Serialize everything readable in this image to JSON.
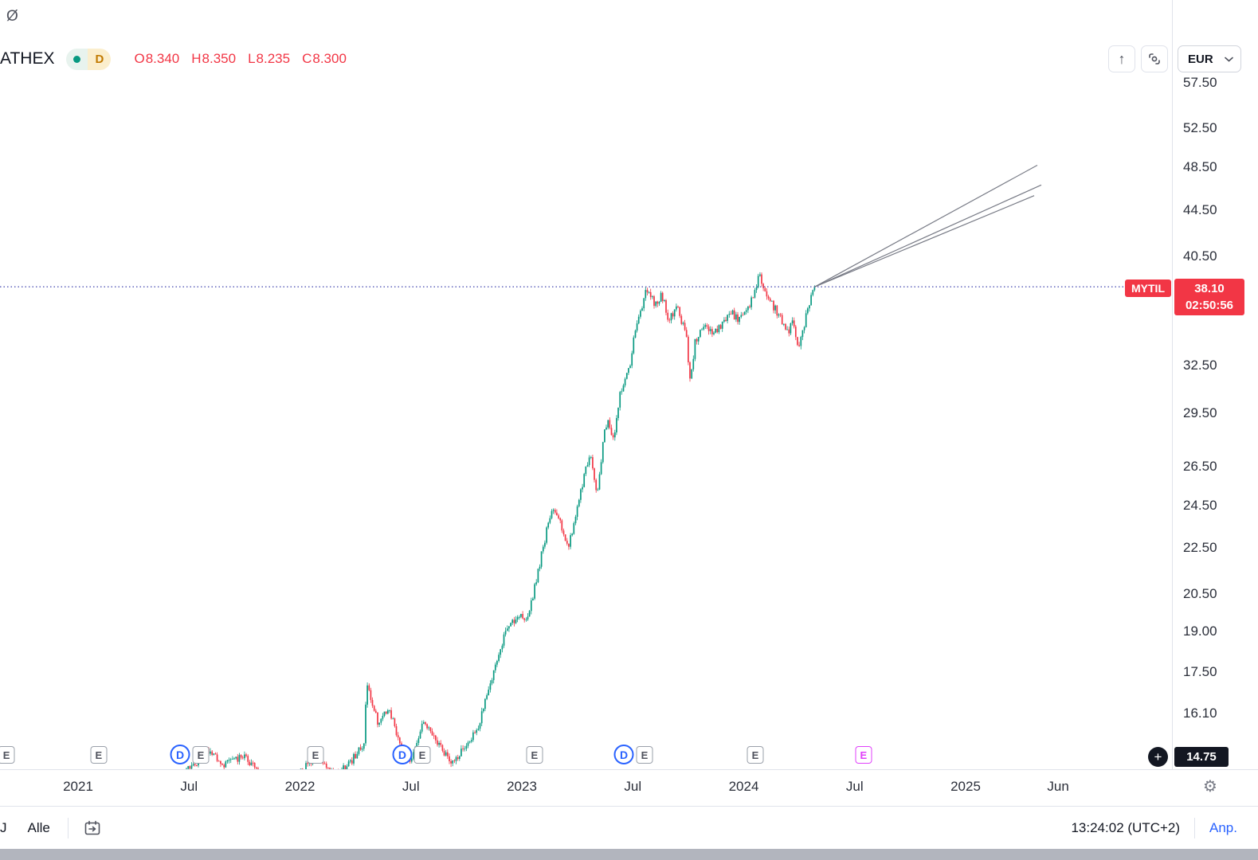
{
  "icons": {
    "o_slash": "Ø",
    "arrow_up": "↑",
    "plus": "+",
    "gear": "⚙"
  },
  "header": {
    "symbol": "ATHEX",
    "market_status": "open",
    "interval": "D",
    "ohlc": {
      "items": [
        {
          "label": "O",
          "value": "8.340"
        },
        {
          "label": "H",
          "value": "8.350"
        },
        {
          "label": "L",
          "value": "8.235"
        },
        {
          "label": "C",
          "value": "8.300"
        }
      ]
    },
    "currency": "EUR"
  },
  "price_scale": {
    "ticks": [
      {
        "label": "57.50",
        "value": 57.5
      },
      {
        "label": "52.50",
        "value": 52.5
      },
      {
        "label": "48.50",
        "value": 48.5
      },
      {
        "label": "44.50",
        "value": 44.5
      },
      {
        "label": "40.50",
        "value": 40.5
      },
      {
        "label": "32.50",
        "value": 32.5
      },
      {
        "label": "29.50",
        "value": 29.5
      },
      {
        "label": "26.50",
        "value": 26.5
      },
      {
        "label": "24.50",
        "value": 24.5
      },
      {
        "label": "22.50",
        "value": 22.5
      },
      {
        "label": "20.50",
        "value": 20.5
      },
      {
        "label": "19.00",
        "value": 19.0
      },
      {
        "label": "17.50",
        "value": 17.5
      },
      {
        "label": "16.10",
        "value": 16.1
      }
    ],
    "current": {
      "symbol": "MYTIL",
      "price": "38.10",
      "countdown": "02:50:56"
    },
    "crosshair": {
      "price": "14.75"
    }
  },
  "time_scale": {
    "ticks": [
      {
        "label": "2021",
        "t": 0.0
      },
      {
        "label": "Jul",
        "t": 0.5
      },
      {
        "label": "2022",
        "t": 1.0
      },
      {
        "label": "Jul",
        "t": 1.5
      },
      {
        "label": "2023",
        "t": 2.0
      },
      {
        "label": "Jul",
        "t": 2.5
      },
      {
        "label": "2024",
        "t": 3.0
      },
      {
        "label": "Jul",
        "t": 3.5
      },
      {
        "label": "2025",
        "t": 4.0
      },
      {
        "label": "Jun",
        "t": 4.417
      }
    ]
  },
  "chart_data": {
    "type": "candlestick",
    "scale": "log",
    "meta": {
      "symbol": "MYTIL",
      "exchange": "ATHEX",
      "currency": "EUR",
      "interval": "D",
      "last_price": 38.1,
      "countdown": "02:50:56",
      "crosshair_price": 14.75
    },
    "y_axis": {
      "ticks": [
        57.5,
        52.5,
        48.5,
        44.5,
        40.5,
        32.5,
        29.5,
        26.5,
        24.5,
        22.5,
        20.5,
        19.0,
        17.5,
        16.1
      ]
    },
    "x_axis": {
      "ticks": [
        "2021",
        "Jul",
        "2022",
        "Jul",
        "2023",
        "Jul",
        "2024",
        "Jul",
        "2025",
        "Jun"
      ]
    },
    "price_line": 38.1,
    "series_anchors": [
      [
        -0.35,
        13.4
      ],
      [
        0.0,
        13.9
      ],
      [
        0.1,
        14.3
      ],
      [
        0.2,
        13.8
      ],
      [
        0.3,
        14.1
      ],
      [
        0.4,
        13.7
      ],
      [
        0.5,
        14.4
      ],
      [
        0.58,
        14.9
      ],
      [
        0.66,
        14.5
      ],
      [
        0.74,
        14.8
      ],
      [
        0.82,
        14.3
      ],
      [
        0.9,
        13.8
      ],
      [
        1.0,
        14.3
      ],
      [
        1.08,
        14.8
      ],
      [
        1.16,
        14.2
      ],
      [
        1.24,
        14.7
      ],
      [
        1.29,
        15.2
      ],
      [
        1.3,
        17.3
      ],
      [
        1.32,
        16.6
      ],
      [
        1.35,
        15.8
      ],
      [
        1.4,
        16.3
      ],
      [
        1.45,
        15.1
      ],
      [
        1.5,
        14.6
      ],
      [
        1.56,
        15.9
      ],
      [
        1.62,
        15.2
      ],
      [
        1.68,
        14.6
      ],
      [
        1.74,
        15.0
      ],
      [
        1.8,
        15.6
      ],
      [
        1.86,
        17.2
      ],
      [
        1.92,
        18.8
      ],
      [
        1.97,
        19.5
      ],
      [
        2.03,
        19.6
      ],
      [
        2.07,
        21.3
      ],
      [
        2.11,
        23.2
      ],
      [
        2.14,
        24.4
      ],
      [
        2.17,
        23.7
      ],
      [
        2.21,
        22.5
      ],
      [
        2.25,
        24.4
      ],
      [
        2.29,
        26.5
      ],
      [
        2.31,
        27.2
      ],
      [
        2.34,
        25.1
      ],
      [
        2.37,
        28.3
      ],
      [
        2.39,
        29.1
      ],
      [
        2.41,
        27.8
      ],
      [
        2.44,
        30.5
      ],
      [
        2.46,
        31.6
      ],
      [
        2.49,
        32.6
      ],
      [
        2.51,
        34.9
      ],
      [
        2.53,
        35.9
      ],
      [
        2.56,
        37.9
      ],
      [
        2.6,
        36.8
      ],
      [
        2.63,
        37.5
      ],
      [
        2.66,
        35.8
      ],
      [
        2.7,
        36.5
      ],
      [
        2.74,
        34.6
      ],
      [
        2.76,
        31.4
      ],
      [
        2.78,
        34.1
      ],
      [
        2.82,
        35.3
      ],
      [
        2.86,
        34.8
      ],
      [
        2.9,
        35.2
      ],
      [
        2.94,
        36.2
      ],
      [
        2.98,
        35.6
      ],
      [
        3.02,
        36.5
      ],
      [
        3.05,
        37.8
      ],
      [
        3.07,
        39.1
      ],
      [
        3.09,
        38.2
      ],
      [
        3.11,
        37.1
      ],
      [
        3.14,
        36.5
      ],
      [
        3.17,
        35.6
      ],
      [
        3.2,
        34.6
      ],
      [
        3.22,
        35.9
      ],
      [
        3.245,
        33.6
      ],
      [
        3.27,
        35.2
      ],
      [
        3.29,
        36.5
      ],
      [
        3.31,
        37.7
      ],
      [
        3.32,
        38.1
      ]
    ],
    "trend_lines": [
      {
        "t1": 3.32,
        "p1": 38.1,
        "t2": 4.323,
        "p2": 48.7
      },
      {
        "t1": 3.32,
        "p1": 38.1,
        "t2": 4.341,
        "p2": 46.8
      },
      {
        "t1": 3.32,
        "p1": 38.1,
        "t2": 4.309,
        "p2": 45.8
      }
    ],
    "markers": {
      "e_label": "E",
      "d_label": "D",
      "earnings": [
        -0.323,
        0.093,
        0.553,
        1.07,
        1.551,
        2.057,
        2.553,
        3.052
      ],
      "earnings_future": [
        3.54
      ],
      "dividends": [
        0.46,
        1.461,
        2.46
      ]
    },
    "colors": {
      "up": "#089981",
      "down": "#f23645",
      "trend": "#787b86",
      "price_line": "#5357b6"
    }
  },
  "footer": {
    "range_partial": "J",
    "range_all": "Alle",
    "clock": "13:24:02 (UTC+2)",
    "adjust": "Anp."
  }
}
